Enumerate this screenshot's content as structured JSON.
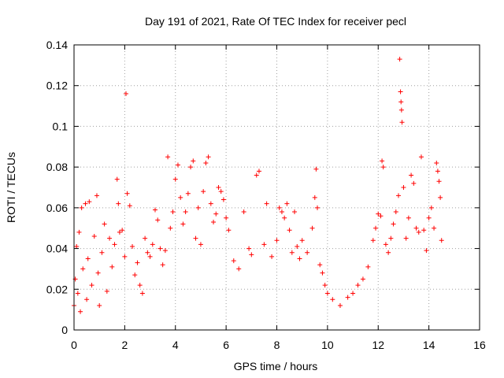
{
  "chart_data": {
    "type": "scatter",
    "title": "Day 191 of 2021, Rate Of TEC Index for receiver pecl",
    "xlabel": "GPS time / hours",
    "ylabel": "ROTI / TECUs",
    "xlim": [
      0,
      16
    ],
    "ylim": [
      0,
      0.14
    ],
    "xticks": [
      0,
      2,
      4,
      6,
      8,
      10,
      12,
      14,
      16
    ],
    "yticks": [
      0,
      0.02,
      0.04,
      0.06,
      0.08,
      0.1,
      0.12,
      0.14
    ],
    "xtick_labels": [
      "0",
      "2",
      "4",
      "6",
      "8",
      "10",
      "12",
      "14",
      "16"
    ],
    "ytick_labels": [
      "0",
      "0.02",
      "0.04",
      "0.06",
      "0.08",
      "0.1",
      "0.12",
      "0.14"
    ],
    "grid": true,
    "marker": "+",
    "color": "#ff0000",
    "series": [
      {
        "name": "ROTI",
        "points": [
          [
            0.0,
            0.012
          ],
          [
            0.05,
            0.025
          ],
          [
            0.1,
            0.041
          ],
          [
            0.15,
            0.018
          ],
          [
            0.2,
            0.048
          ],
          [
            0.25,
            0.009
          ],
          [
            0.3,
            0.06
          ],
          [
            0.35,
            0.03
          ],
          [
            0.45,
            0.062
          ],
          [
            0.5,
            0.015
          ],
          [
            0.55,
            0.035
          ],
          [
            0.6,
            0.063
          ],
          [
            0.7,
            0.022
          ],
          [
            0.8,
            0.046
          ],
          [
            0.9,
            0.066
          ],
          [
            0.95,
            0.028
          ],
          [
            1.0,
            0.012
          ],
          [
            1.1,
            0.038
          ],
          [
            1.2,
            0.052
          ],
          [
            1.3,
            0.019
          ],
          [
            1.4,
            0.045
          ],
          [
            1.5,
            0.031
          ],
          [
            1.6,
            0.042
          ],
          [
            1.7,
            0.074
          ],
          [
            1.75,
            0.062
          ],
          [
            1.8,
            0.048
          ],
          [
            1.9,
            0.049
          ],
          [
            2.0,
            0.036
          ],
          [
            2.05,
            0.116
          ],
          [
            2.1,
            0.067
          ],
          [
            2.2,
            0.061
          ],
          [
            2.3,
            0.041
          ],
          [
            2.4,
            0.027
          ],
          [
            2.5,
            0.033
          ],
          [
            2.6,
            0.022
          ],
          [
            2.7,
            0.018
          ],
          [
            2.8,
            0.045
          ],
          [
            2.9,
            0.038
          ],
          [
            3.0,
            0.036
          ],
          [
            3.1,
            0.042
          ],
          [
            3.2,
            0.059
          ],
          [
            3.3,
            0.054
          ],
          [
            3.4,
            0.04
          ],
          [
            3.5,
            0.032
          ],
          [
            3.6,
            0.039
          ],
          [
            3.7,
            0.085
          ],
          [
            3.8,
            0.05
          ],
          [
            3.9,
            0.058
          ],
          [
            4.0,
            0.074
          ],
          [
            4.1,
            0.081
          ],
          [
            4.2,
            0.065
          ],
          [
            4.3,
            0.052
          ],
          [
            4.4,
            0.058
          ],
          [
            4.5,
            0.067
          ],
          [
            4.6,
            0.08
          ],
          [
            4.7,
            0.083
          ],
          [
            4.8,
            0.045
          ],
          [
            4.9,
            0.06
          ],
          [
            5.0,
            0.042
          ],
          [
            5.1,
            0.068
          ],
          [
            5.2,
            0.082
          ],
          [
            5.3,
            0.085
          ],
          [
            5.4,
            0.062
          ],
          [
            5.5,
            0.053
          ],
          [
            5.6,
            0.057
          ],
          [
            5.7,
            0.07
          ],
          [
            5.8,
            0.068
          ],
          [
            5.9,
            0.064
          ],
          [
            6.0,
            0.055
          ],
          [
            6.1,
            0.049
          ],
          [
            6.3,
            0.034
          ],
          [
            6.5,
            0.03
          ],
          [
            6.7,
            0.058
          ],
          [
            6.9,
            0.04
          ],
          [
            7.0,
            0.037
          ],
          [
            7.2,
            0.076
          ],
          [
            7.3,
            0.078
          ],
          [
            7.5,
            0.042
          ],
          [
            7.6,
            0.062
          ],
          [
            7.8,
            0.036
          ],
          [
            8.0,
            0.044
          ],
          [
            8.1,
            0.06
          ],
          [
            8.2,
            0.058
          ],
          [
            8.3,
            0.055
          ],
          [
            8.4,
            0.062
          ],
          [
            8.5,
            0.049
          ],
          [
            8.6,
            0.038
          ],
          [
            8.7,
            0.058
          ],
          [
            8.8,
            0.041
          ],
          [
            8.9,
            0.035
          ],
          [
            9.0,
            0.044
          ],
          [
            9.2,
            0.038
          ],
          [
            9.4,
            0.05
          ],
          [
            9.5,
            0.065
          ],
          [
            9.55,
            0.079
          ],
          [
            9.6,
            0.06
          ],
          [
            9.7,
            0.032
          ],
          [
            9.8,
            0.028
          ],
          [
            9.9,
            0.022
          ],
          [
            10.0,
            0.018
          ],
          [
            10.2,
            0.015
          ],
          [
            10.5,
            0.012
          ],
          [
            10.8,
            0.016
          ],
          [
            11.0,
            0.018
          ],
          [
            11.2,
            0.022
          ],
          [
            11.4,
            0.025
          ],
          [
            11.6,
            0.031
          ],
          [
            11.8,
            0.044
          ],
          [
            11.9,
            0.05
          ],
          [
            12.0,
            0.057
          ],
          [
            12.1,
            0.056
          ],
          [
            12.15,
            0.083
          ],
          [
            12.2,
            0.08
          ],
          [
            12.3,
            0.042
          ],
          [
            12.4,
            0.038
          ],
          [
            12.5,
            0.045
          ],
          [
            12.6,
            0.052
          ],
          [
            12.7,
            0.058
          ],
          [
            12.8,
            0.066
          ],
          [
            12.85,
            0.133
          ],
          [
            12.88,
            0.117
          ],
          [
            12.9,
            0.112
          ],
          [
            12.92,
            0.108
          ],
          [
            12.94,
            0.102
          ],
          [
            13.0,
            0.07
          ],
          [
            13.1,
            0.045
          ],
          [
            13.2,
            0.055
          ],
          [
            13.3,
            0.076
          ],
          [
            13.4,
            0.072
          ],
          [
            13.5,
            0.05
          ],
          [
            13.6,
            0.048
          ],
          [
            13.7,
            0.085
          ],
          [
            13.8,
            0.049
          ],
          [
            13.9,
            0.039
          ],
          [
            14.0,
            0.055
          ],
          [
            14.1,
            0.06
          ],
          [
            14.2,
            0.05
          ],
          [
            14.3,
            0.082
          ],
          [
            14.35,
            0.078
          ],
          [
            14.4,
            0.073
          ],
          [
            14.45,
            0.065
          ],
          [
            14.5,
            0.044
          ]
        ]
      }
    ]
  }
}
